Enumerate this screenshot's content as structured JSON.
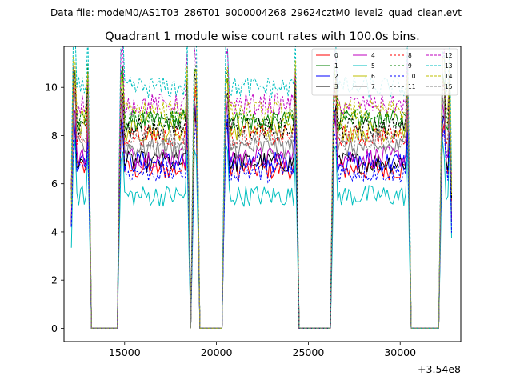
{
  "suptitle": "Data file: modeM0/AS1T03_286T01_9000004268_29624cztM0_level2_quad_clean.evt",
  "chart_data": {
    "type": "line",
    "title": "Quadrant 1 module wise count rates with 100.0s bins.",
    "xlabel": "",
    "ylabel": "",
    "xlim": [
      11700,
      33300
    ],
    "ylim": [
      -0.55,
      11.7
    ],
    "xticks": [
      15000,
      20000,
      25000,
      30000
    ],
    "xtick_labels": [
      "15000",
      "20000",
      "25000",
      "30000"
    ],
    "yticks": [
      0,
      2,
      4,
      6,
      8,
      10
    ],
    "ytick_labels": [
      "0",
      "2",
      "4",
      "6",
      "8",
      "10"
    ],
    "x_offset_label": "+3.54e8",
    "legend_position": "top-right",
    "segments": [
      {
        "start": 12100,
        "end": 13100
      },
      {
        "start": 14700,
        "end": 18500
      },
      {
        "start": 18700,
        "end": 19000
      },
      {
        "start": 20400,
        "end": 24400
      },
      {
        "start": 26300,
        "end": 30500
      },
      {
        "start": 32200,
        "end": 32800
      }
    ],
    "series": [
      {
        "name": "0",
        "color": "#ff0000",
        "style": "solid",
        "level": 6.6
      },
      {
        "name": "1",
        "color": "#008000",
        "style": "solid",
        "level": 8.6
      },
      {
        "name": "2",
        "color": "#0000ff",
        "style": "solid",
        "level": 6.9
      },
      {
        "name": "3",
        "color": "#000000",
        "style": "solid",
        "level": 6.9
      },
      {
        "name": "4",
        "color": "#bf00bf",
        "style": "solid",
        "level": 7.1
      },
      {
        "name": "5",
        "color": "#00bfbf",
        "style": "solid",
        "level": 5.5
      },
      {
        "name": "6",
        "color": "#bfbf00",
        "style": "solid",
        "level": 8.2
      },
      {
        "name": "7",
        "color": "#808080",
        "style": "solid",
        "level": 7.5
      },
      {
        "name": "8",
        "color": "#ff0000",
        "style": "dashed",
        "level": 8.0
      },
      {
        "name": "9",
        "color": "#008000",
        "style": "dashed",
        "level": 8.7
      },
      {
        "name": "10",
        "color": "#0000ff",
        "style": "dashed",
        "level": 6.5
      },
      {
        "name": "11",
        "color": "#000000",
        "style": "dashed",
        "level": 8.3
      },
      {
        "name": "12",
        "color": "#bf00bf",
        "style": "dashed",
        "level": 9.3
      },
      {
        "name": "13",
        "color": "#00bfbf",
        "style": "dashed",
        "level": 10.0
      },
      {
        "name": "14",
        "color": "#bfbf00",
        "style": "dashed",
        "level": 9.0
      },
      {
        "name": "15",
        "color": "#808080",
        "style": "dashed",
        "level": 7.8
      }
    ]
  }
}
